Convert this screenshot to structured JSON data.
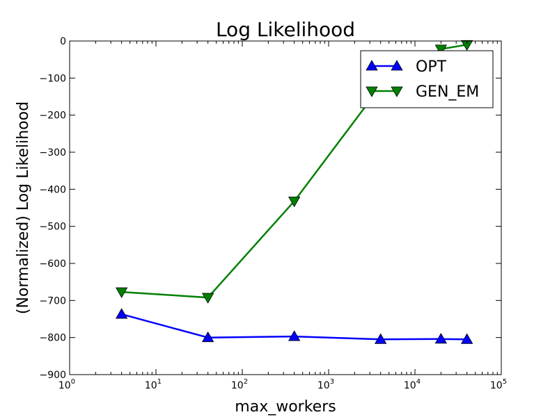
{
  "chart_data": {
    "type": "line",
    "title": "Log Likelihood",
    "xlabel": "max_workers",
    "ylabel": "(Normalized) Log Likelihood",
    "xscale": "log",
    "xlim": [
      1,
      100000
    ],
    "ylim": [
      -900,
      0
    ],
    "xticks": [
      {
        "value": 1,
        "mantissa": "10",
        "exp": "0"
      },
      {
        "value": 10,
        "mantissa": "10",
        "exp": "1"
      },
      {
        "value": 100,
        "mantissa": "10",
        "exp": "2"
      },
      {
        "value": 1000,
        "mantissa": "10",
        "exp": "3"
      },
      {
        "value": 10000,
        "mantissa": "10",
        "exp": "4"
      },
      {
        "value": 100000,
        "mantissa": "10",
        "exp": "5"
      }
    ],
    "yticks": [
      {
        "value": 0,
        "label": "0"
      },
      {
        "value": -100,
        "label": "−100"
      },
      {
        "value": -200,
        "label": "−200"
      },
      {
        "value": -300,
        "label": "−300"
      },
      {
        "value": -400,
        "label": "−400"
      },
      {
        "value": -500,
        "label": "−500"
      },
      {
        "value": -600,
        "label": "−600"
      },
      {
        "value": -700,
        "label": "−700"
      },
      {
        "value": -800,
        "label": "−800"
      },
      {
        "value": -900,
        "label": "−900"
      }
    ],
    "grid": false,
    "legend_position": "top-right",
    "series": [
      {
        "name": "OPT",
        "color": "#0000ff",
        "marker": "triangle-up",
        "x": [
          4,
          40,
          400,
          4000,
          20000,
          40000
        ],
        "y": [
          -737,
          -800,
          -797,
          -805,
          -804,
          -805
        ]
      },
      {
        "name": "GEN_EM",
        "color": "#008000",
        "marker": "triangle-down",
        "x": [
          4,
          40,
          400,
          4000,
          20000,
          40000
        ],
        "y": [
          -677,
          -692,
          -432,
          -122,
          -22,
          -10
        ]
      }
    ]
  }
}
